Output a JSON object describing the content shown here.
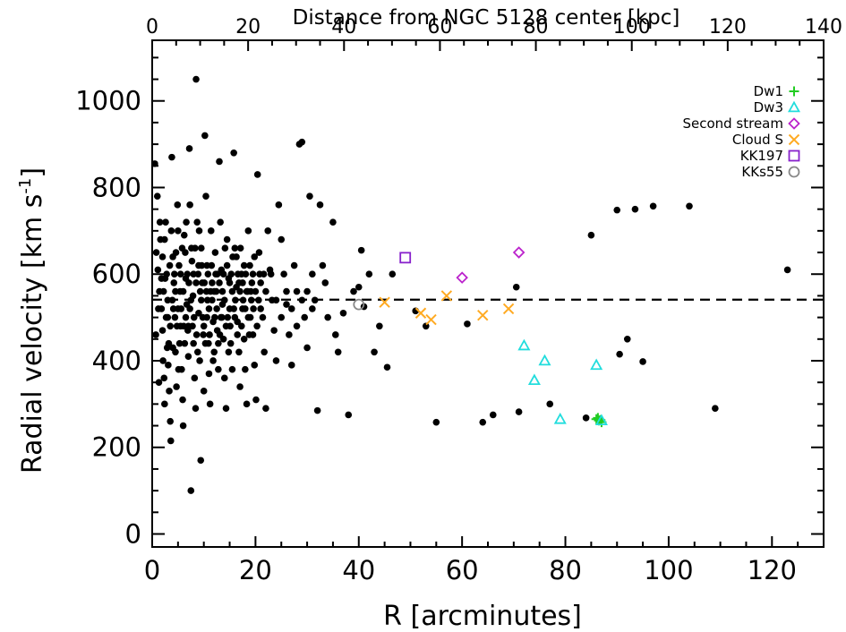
{
  "chart_data": {
    "type": "scatter",
    "xlabel": "R [arcminutes]",
    "ylabel": "Radial velocity [km s",
    "ylabel_sup": "-1",
    "ylabel_close": "]",
    "top_xlabel": "Distance from NGC 5128 center [kpc]",
    "xlim": [
      0,
      130
    ],
    "ylim": [
      -30,
      1140
    ],
    "top_xlim": [
      0,
      140
    ],
    "x_ticks": [
      "0",
      "20",
      "40",
      "60",
      "80",
      "100",
      "120"
    ],
    "y_ticks": [
      "0",
      "200",
      "400",
      "600",
      "800",
      "1000"
    ],
    "top_ticks": [
      "0",
      "20",
      "40",
      "60",
      "80",
      "100",
      "120",
      "140"
    ],
    "reference_line_y": 541,
    "legend_position": "top-right",
    "colors": {
      "Dw1": "#22cc22",
      "Dw3": "#22dddd",
      "Second stream": "#bb22cc",
      "Cloud S": "#ffaa22",
      "KK197": "#8822cc",
      "KKs55": "#888888",
      "background": "#000000"
    },
    "background_points": [
      [
        0.5,
        855
      ],
      [
        0.8,
        650
      ],
      [
        1.1,
        610
      ],
      [
        1.4,
        560
      ],
      [
        1.6,
        680
      ],
      [
        1.8,
        520
      ],
      [
        2.0,
        470
      ],
      [
        2.1,
        400
      ],
      [
        2.3,
        360
      ],
      [
        2.4,
        300
      ],
      [
        2.6,
        720
      ],
      [
        2.8,
        600
      ],
      [
        3.0,
        540
      ],
      [
        3.2,
        440
      ],
      [
        3.3,
        330
      ],
      [
        3.5,
        260
      ],
      [
        3.6,
        215
      ],
      [
        3.8,
        870
      ],
      [
        4.0,
        640
      ],
      [
        4.2,
        580
      ],
      [
        4.4,
        500
      ],
      [
        4.5,
        420
      ],
      [
        4.7,
        340
      ],
      [
        4.9,
        760
      ],
      [
        5.0,
        700
      ],
      [
        5.2,
        620
      ],
      [
        5.4,
        560
      ],
      [
        5.5,
        480
      ],
      [
        5.7,
        380
      ],
      [
        5.9,
        310
      ],
      [
        6.0,
        250
      ],
      [
        6.2,
        690
      ],
      [
        6.4,
        650
      ],
      [
        6.5,
        590
      ],
      [
        6.7,
        530
      ],
      [
        6.9,
        470
      ],
      [
        7.0,
        410
      ],
      [
        7.2,
        890
      ],
      [
        7.3,
        760
      ],
      [
        7.5,
        100
      ],
      [
        7.7,
        630
      ],
      [
        7.9,
        550
      ],
      [
        8.0,
        440
      ],
      [
        8.2,
        360
      ],
      [
        8.4,
        290
      ],
      [
        8.5,
        1050
      ],
      [
        8.7,
        720
      ],
      [
        8.9,
        600
      ],
      [
        9.0,
        510
      ],
      [
        9.2,
        400
      ],
      [
        9.4,
        170
      ],
      [
        9.5,
        660
      ],
      [
        9.7,
        580
      ],
      [
        9.9,
        460
      ],
      [
        10.0,
        330
      ],
      [
        10.2,
        920
      ],
      [
        10.4,
        780
      ],
      [
        10.6,
        620
      ],
      [
        10.7,
        540
      ],
      [
        10.9,
        440
      ],
      [
        11.0,
        370
      ],
      [
        11.2,
        300
      ],
      [
        11.4,
        700
      ],
      [
        11.6,
        580
      ],
      [
        11.8,
        490
      ],
      [
        12.0,
        420
      ],
      [
        12.2,
        650
      ],
      [
        12.4,
        560
      ],
      [
        12.6,
        470
      ],
      [
        12.8,
        380
      ],
      [
        13.0,
        860
      ],
      [
        13.2,
        720
      ],
      [
        13.4,
        610
      ],
      [
        13.6,
        530
      ],
      [
        13.8,
        450
      ],
      [
        14.0,
        360
      ],
      [
        14.3,
        290
      ],
      [
        14.5,
        680
      ],
      [
        14.8,
        590
      ],
      [
        15.0,
        520
      ],
      [
        15.2,
        440
      ],
      [
        15.5,
        380
      ],
      [
        15.8,
        880
      ],
      [
        16.0,
        660
      ],
      [
        16.3,
        570
      ],
      [
        16.5,
        490
      ],
      [
        16.8,
        420
      ],
      [
        17.0,
        340
      ],
      [
        17.3,
        600
      ],
      [
        17.5,
        520
      ],
      [
        17.8,
        450
      ],
      [
        18.0,
        380
      ],
      [
        18.3,
        300
      ],
      [
        18.6,
        700
      ],
      [
        18.9,
        620
      ],
      [
        19.2,
        540
      ],
      [
        19.5,
        460
      ],
      [
        19.8,
        390
      ],
      [
        20.1,
        310
      ],
      [
        20.4,
        830
      ],
      [
        20.7,
        650
      ],
      [
        21.0,
        580
      ],
      [
        21.4,
        500
      ],
      [
        21.7,
        420
      ],
      [
        22.0,
        290
      ],
      [
        22.4,
        700
      ],
      [
        22.8,
        610
      ],
      [
        23.2,
        540
      ],
      [
        23.6,
        470
      ],
      [
        24.0,
        400
      ],
      [
        24.5,
        760
      ],
      [
        25.0,
        680
      ],
      [
        25.5,
        600
      ],
      [
        26.0,
        530
      ],
      [
        26.5,
        460
      ],
      [
        27.0,
        390
      ],
      [
        27.5,
        620
      ],
      [
        28.0,
        560
      ],
      [
        28.5,
        900
      ],
      [
        29.0,
        905
      ],
      [
        29.5,
        500
      ],
      [
        30.0,
        430
      ],
      [
        30.5,
        780
      ],
      [
        31.0,
        600
      ],
      [
        31.5,
        540
      ],
      [
        32.0,
        285
      ],
      [
        32.5,
        760
      ],
      [
        33.0,
        620
      ],
      [
        33.5,
        580
      ],
      [
        34.0,
        500
      ],
      [
        35.0,
        720
      ],
      [
        35.5,
        460
      ],
      [
        36.0,
        420
      ],
      [
        37.0,
        510
      ],
      [
        38.0,
        275
      ],
      [
        39.0,
        560
      ],
      [
        40.0,
        570
      ],
      [
        40.5,
        655
      ],
      [
        41.0,
        525
      ],
      [
        42.0,
        600
      ],
      [
        43.0,
        420
      ],
      [
        44.0,
        480
      ],
      [
        45.5,
        385
      ],
      [
        46.5,
        600
      ],
      [
        51.0,
        515
      ],
      [
        53.0,
        480
      ],
      [
        55.0,
        258
      ],
      [
        61.0,
        485
      ],
      [
        64.0,
        258
      ],
      [
        66.0,
        275
      ],
      [
        70.5,
        570
      ],
      [
        71.0,
        282
      ],
      [
        77.0,
        300
      ],
      [
        84.0,
        268
      ],
      [
        85.0,
        690
      ],
      [
        90.0,
        748
      ],
      [
        90.5,
        415
      ],
      [
        92.0,
        450
      ],
      [
        93.5,
        750
      ],
      [
        95.0,
        398
      ],
      [
        97.0,
        757
      ],
      [
        104.0,
        757
      ],
      [
        109.0,
        290
      ],
      [
        123.0,
        610
      ],
      [
        1.0,
        780
      ],
      [
        1.5,
        720
      ],
      [
        2.0,
        640
      ],
      [
        2.5,
        590
      ],
      [
        3.0,
        500
      ],
      [
        3.5,
        480
      ],
      [
        4.0,
        430
      ],
      [
        4.5,
        560
      ],
      [
        5.0,
        520
      ],
      [
        5.5,
        600
      ],
      [
        6.0,
        560
      ],
      [
        6.5,
        500
      ],
      [
        7.0,
        480
      ],
      [
        7.5,
        540
      ],
      [
        8.0,
        600
      ],
      [
        8.5,
        580
      ],
      [
        9.0,
        620
      ],
      [
        9.5,
        540
      ],
      [
        10.0,
        480
      ],
      [
        10.5,
        560
      ],
      [
        11.0,
        520
      ],
      [
        11.5,
        620
      ],
      [
        12.0,
        560
      ],
      [
        12.5,
        520
      ],
      [
        13.0,
        580
      ],
      [
        13.5,
        500
      ],
      [
        14.0,
        540
      ],
      [
        14.5,
        620
      ],
      [
        15.0,
        580
      ],
      [
        15.5,
        560
      ],
      [
        16.0,
        500
      ],
      [
        16.5,
        460
      ],
      [
        17.0,
        560
      ],
      [
        17.5,
        580
      ],
      [
        18.0,
        520
      ],
      [
        18.5,
        560
      ],
      [
        19.0,
        500
      ],
      [
        19.5,
        600
      ],
      [
        20.0,
        560
      ],
      [
        21.0,
        520
      ],
      [
        22.0,
        560
      ],
      [
        23.0,
        600
      ],
      [
        24.0,
        540
      ],
      [
        25.0,
        500
      ],
      [
        26.0,
        560
      ],
      [
        27.0,
        520
      ],
      [
        28.0,
        480
      ],
      [
        29.0,
        540
      ],
      [
        30.0,
        560
      ],
      [
        31.0,
        520
      ],
      [
        1.2,
        520
      ],
      [
        1.8,
        590
      ],
      [
        2.4,
        680
      ],
      [
        2.9,
        430
      ],
      [
        3.4,
        620
      ],
      [
        3.9,
        540
      ],
      [
        4.3,
        600
      ],
      [
        4.8,
        480
      ],
      [
        5.3,
        440
      ],
      [
        5.8,
        660
      ],
      [
        6.3,
        440
      ],
      [
        6.8,
        600
      ],
      [
        7.3,
        520
      ],
      [
        7.8,
        480
      ],
      [
        8.3,
        660
      ],
      [
        8.8,
        420
      ],
      [
        9.3,
        560
      ],
      [
        9.8,
        500
      ],
      [
        10.3,
        440
      ],
      [
        10.8,
        600
      ],
      [
        11.3,
        560
      ],
      [
        11.8,
        400
      ],
      [
        12.3,
        600
      ],
      [
        12.8,
        440
      ],
      [
        13.3,
        500
      ],
      [
        13.8,
        600
      ],
      [
        14.3,
        480
      ],
      [
        14.8,
        420
      ],
      [
        15.3,
        600
      ],
      [
        15.8,
        520
      ],
      [
        16.3,
        640
      ],
      [
        16.8,
        580
      ],
      [
        17.3,
        480
      ],
      [
        17.8,
        620
      ],
      [
        18.3,
        560
      ],
      [
        18.8,
        460
      ],
      [
        19.3,
        580
      ],
      [
        19.8,
        640
      ],
      [
        20.3,
        480
      ],
      [
        20.8,
        600
      ],
      [
        0.7,
        460
      ],
      [
        1.3,
        350
      ],
      [
        2.2,
        560
      ],
      [
        2.7,
        500
      ],
      [
        3.1,
        390
      ],
      [
        3.7,
        700
      ],
      [
        4.1,
        520
      ],
      [
        4.6,
        650
      ],
      [
        5.1,
        380
      ],
      [
        5.6,
        520
      ],
      [
        6.1,
        480
      ],
      [
        6.6,
        720
      ],
      [
        7.1,
        580
      ],
      [
        7.6,
        660
      ],
      [
        8.1,
        500
      ],
      [
        8.6,
        460
      ],
      [
        9.1,
        700
      ],
      [
        9.6,
        620
      ],
      [
        10.1,
        580
      ],
      [
        10.6,
        500
      ],
      [
        11.1,
        460
      ],
      [
        11.6,
        540
      ],
      [
        12.1,
        500
      ],
      [
        12.6,
        600
      ],
      [
        13.1,
        460
      ],
      [
        13.6,
        560
      ],
      [
        14.1,
        660
      ],
      [
        14.6,
        500
      ],
      [
        15.1,
        480
      ],
      [
        15.6,
        640
      ],
      [
        16.1,
        540
      ],
      [
        16.6,
        600
      ],
      [
        17.1,
        660
      ],
      [
        17.6,
        540
      ],
      [
        18.1,
        600
      ],
      [
        18.6,
        500
      ],
      [
        19.1,
        560
      ],
      [
        19.6,
        520
      ],
      [
        20.6,
        540
      ],
      [
        21.6,
        600
      ]
    ],
    "series": [
      {
        "name": "Dw1",
        "marker": "plus",
        "points": [
          [
            86.0,
            265
          ],
          [
            86.5,
            262
          ],
          [
            87.0,
            258
          ],
          [
            86.3,
            268
          ],
          [
            86.8,
            263
          ]
        ]
      },
      {
        "name": "Dw3",
        "marker": "triangle",
        "points": [
          [
            72.0,
            435
          ],
          [
            76.0,
            400
          ],
          [
            74.0,
            355
          ],
          [
            79.0,
            265
          ],
          [
            86.0,
            390
          ],
          [
            87.0,
            262
          ]
        ]
      },
      {
        "name": "Second stream",
        "marker": "diamond",
        "points": [
          [
            60.0,
            592
          ],
          [
            71.0,
            650
          ]
        ]
      },
      {
        "name": "Cloud S",
        "marker": "x",
        "points": [
          [
            45.0,
            535
          ],
          [
            52.0,
            510
          ],
          [
            54.0,
            495
          ],
          [
            57.0,
            550
          ],
          [
            64.0,
            505
          ],
          [
            69.0,
            520
          ]
        ]
      },
      {
        "name": "KK197",
        "marker": "square",
        "points": [
          [
            49.0,
            638
          ]
        ]
      },
      {
        "name": "KKs55",
        "marker": "circle",
        "points": [
          [
            40.0,
            530
          ]
        ]
      }
    ]
  }
}
